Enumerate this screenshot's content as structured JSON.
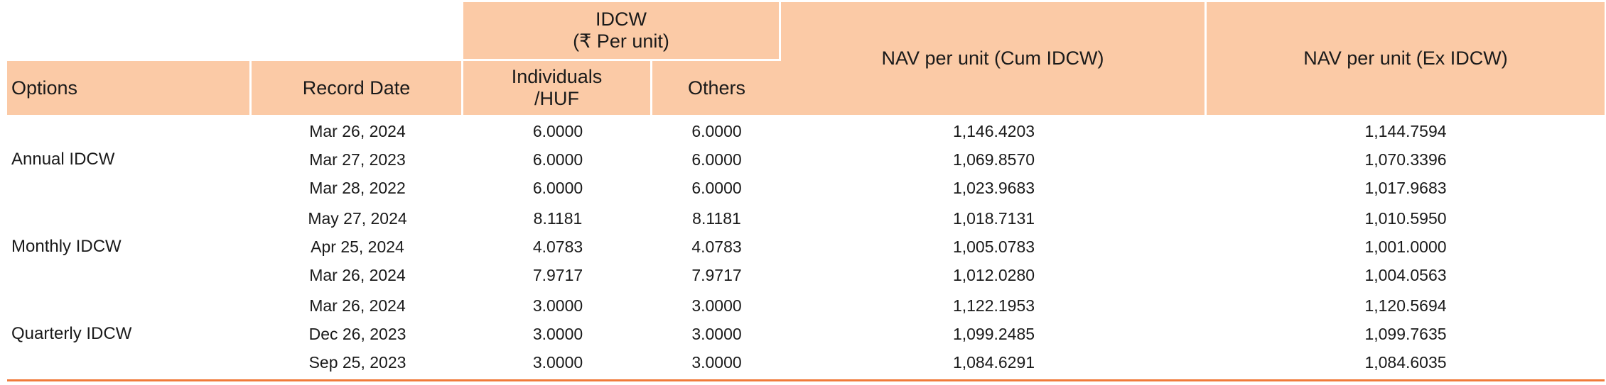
{
  "header": {
    "idcw_group": "IDCW",
    "idcw_unit": "(₹ Per unit)",
    "options": "Options",
    "record_date": "Record Date",
    "individuals_line1": "Individuals",
    "individuals_line2": "/HUF",
    "others": "Others",
    "nav_cum": "NAV per unit (Cum IDCW)",
    "nav_ex": "NAV per unit (Ex IDCW)"
  },
  "groups": [
    {
      "option": "Annual IDCW",
      "rows": [
        {
          "date": "Mar 26, 2024",
          "individuals": "6.0000",
          "others": "6.0000",
          "nav_cum": "1,146.4203",
          "nav_ex": "1,144.7594"
        },
        {
          "date": "Mar 27, 2023",
          "individuals": "6.0000",
          "others": "6.0000",
          "nav_cum": "1,069.8570",
          "nav_ex": "1,070.3396"
        },
        {
          "date": "Mar 28, 2022",
          "individuals": "6.0000",
          "others": "6.0000",
          "nav_cum": "1,023.9683",
          "nav_ex": "1,017.9683"
        }
      ]
    },
    {
      "option": "Monthly IDCW",
      "rows": [
        {
          "date": "May 27, 2024",
          "individuals": "8.1181",
          "others": "8.1181",
          "nav_cum": "1,018.7131",
          "nav_ex": "1,010.5950"
        },
        {
          "date": "Apr 25, 2024",
          "individuals": "4.0783",
          "others": "4.0783",
          "nav_cum": "1,005.0783",
          "nav_ex": "1,001.0000"
        },
        {
          "date": "Mar 26, 2024",
          "individuals": "7.9717",
          "others": "7.9717",
          "nav_cum": "1,012.0280",
          "nav_ex": "1,004.0563"
        }
      ]
    },
    {
      "option": "Quarterly IDCW",
      "rows": [
        {
          "date": "Mar 26, 2024",
          "individuals": "3.0000",
          "others": "3.0000",
          "nav_cum": "1,122.1953",
          "nav_ex": "1,120.5694"
        },
        {
          "date": "Dec 26, 2023",
          "individuals": "3.0000",
          "others": "3.0000",
          "nav_cum": "1,099.2485",
          "nav_ex": "1,099.7635"
        },
        {
          "date": "Sep 25, 2023",
          "individuals": "3.0000",
          "others": "3.0000",
          "nav_cum": "1,084.6291",
          "nav_ex": "1,084.6035"
        }
      ]
    }
  ],
  "colors": {
    "header_bg": "#fbcaa6",
    "bottom_rule": "#f07a3a"
  }
}
